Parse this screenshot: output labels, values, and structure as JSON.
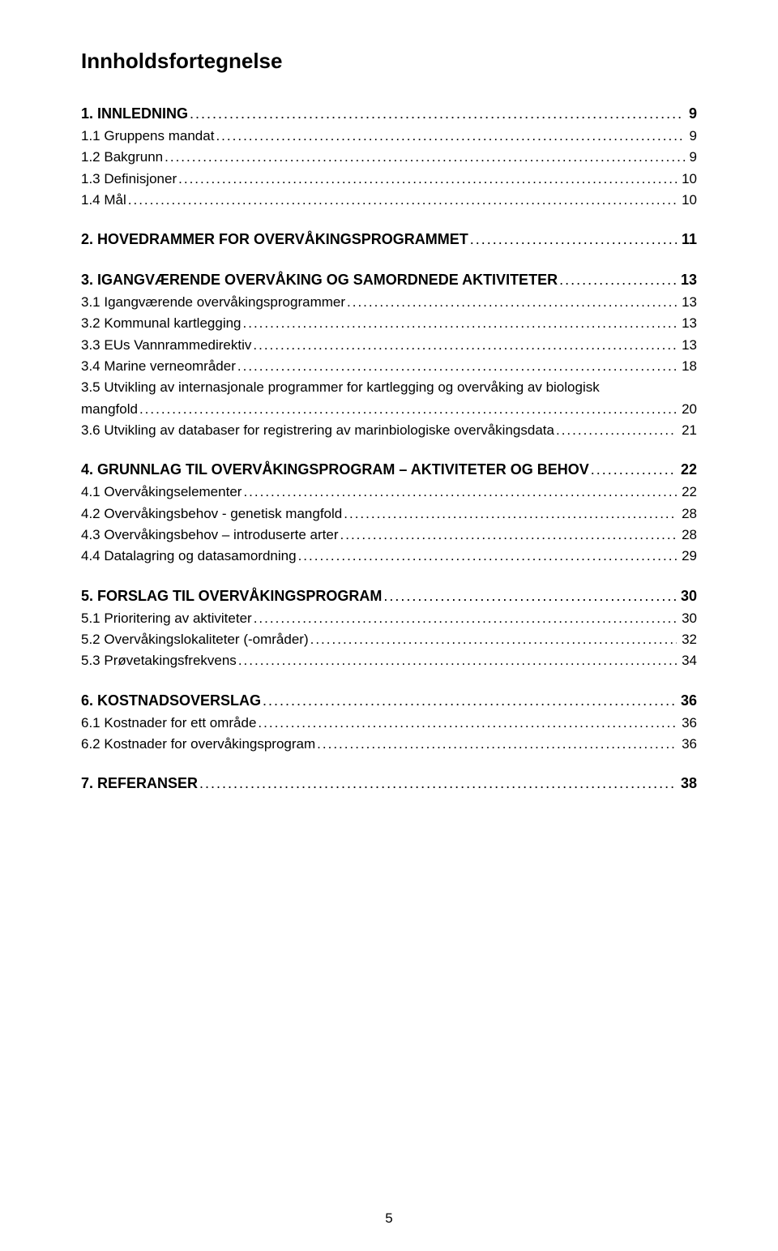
{
  "title": "Innholdsfortegnelse",
  "page_number": "5",
  "sections": [
    {
      "heading": {
        "text": "1. INNLEDNING",
        "page": "9"
      },
      "items": [
        {
          "text": "1.1 Gruppens mandat",
          "page": "9"
        },
        {
          "text": "1.2 Bakgrunn",
          "page": "9"
        },
        {
          "text": "1.3 Definisjoner",
          "page": "10"
        },
        {
          "text": "1.4 Mål",
          "page": "10"
        }
      ]
    },
    {
      "heading": {
        "text": "2. HOVEDRAMMER FOR OVERVÅKINGSPROGRAMMET",
        "page": "11"
      },
      "items": []
    },
    {
      "heading": {
        "text": "3. IGANGVÆRENDE OVERVÅKING OG SAMORDNEDE AKTIVITETER",
        "page": "13"
      },
      "items": [
        {
          "text": "3.1 Igangværende overvåkingsprogrammer",
          "page": "13"
        },
        {
          "text": "3.2 Kommunal kartlegging",
          "page": "13"
        },
        {
          "text": "3.3 EUs Vannrammedirektiv",
          "page": "13"
        },
        {
          "text": "3.4 Marine verneområder",
          "page": "18"
        },
        {
          "text": "3.5 Utvikling av internasjonale programmer for kartlegging og overvåking av biologisk mangfold",
          "page": "20",
          "wrap": true
        },
        {
          "text": "3.6 Utvikling av databaser for registrering av marinbiologiske overvåkingsdata",
          "page": "21"
        }
      ]
    },
    {
      "heading": {
        "text": "4. GRUNNLAG TIL OVERVÅKINGSPROGRAM – AKTIVITETER OG BEHOV",
        "page": "22"
      },
      "items": [
        {
          "text": "4.1 Overvåkingselementer",
          "page": "22"
        },
        {
          "text": "4.2 Overvåkingsbehov - genetisk mangfold",
          "page": "28"
        },
        {
          "text": "4.3 Overvåkingsbehov – introduserte arter",
          "page": "28"
        },
        {
          "text": "4.4 Datalagring og datasamordning",
          "page": "29"
        }
      ]
    },
    {
      "heading": {
        "text": "5. FORSLAG TIL OVERVÅKINGSPROGRAM",
        "page": "30"
      },
      "items": [
        {
          "text": "5.1 Prioritering av aktiviteter",
          "page": "30"
        },
        {
          "text": "5.2 Overvåkingslokaliteter      (-områder)",
          "page": "32"
        },
        {
          "text": "5.3 Prøvetakingsfrekvens",
          "page": "34"
        }
      ]
    },
    {
      "heading": {
        "text": "6. KOSTNADSOVERSLAG",
        "page": "36"
      },
      "items": [
        {
          "text": "6.1 Kostnader for ett område",
          "page": "36"
        },
        {
          "text": "6.2 Kostnader for overvåkingsprogram",
          "page": "36"
        }
      ]
    },
    {
      "heading": {
        "text": "7. REFERANSER",
        "page": "38"
      },
      "items": []
    }
  ]
}
